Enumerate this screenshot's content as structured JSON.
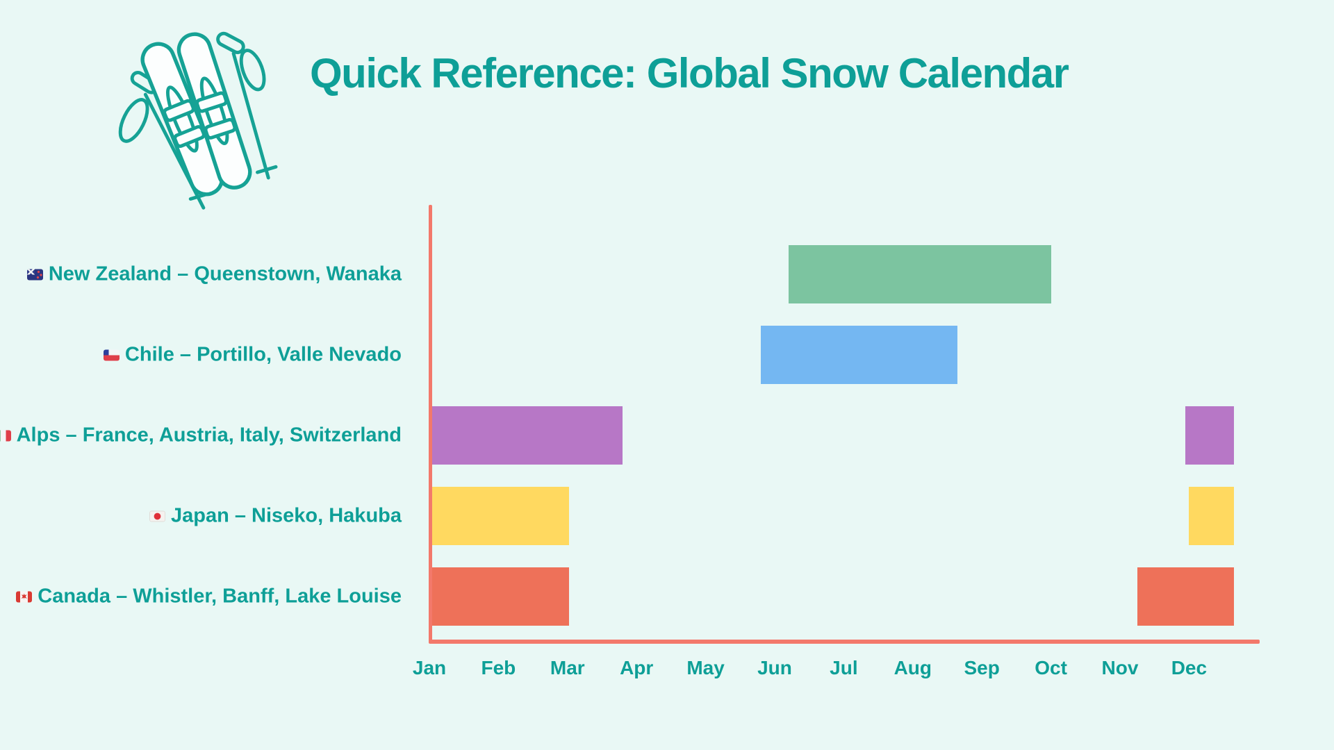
{
  "header": {
    "title": "Quick Reference: Global Snow Calendar"
  },
  "theme": {
    "background": "#e9f8f5",
    "teal_text": "#0e9f97",
    "axis_color": "#f3796b"
  },
  "chart_data": {
    "type": "bar",
    "variant": "gantt-season-calendar",
    "title": "Quick Reference: Global Snow Calendar",
    "orientation": "horizontal",
    "grid": "off",
    "legend": "none",
    "x_axis": {
      "tick_labels": [
        "Jan",
        "Feb",
        "Mar",
        "Apr",
        "May",
        "Jun",
        "Jul",
        "Aug",
        "Sep",
        "Oct",
        "Nov",
        "Dec"
      ],
      "scale_note": "calendar months; bar spans in fractional months where 1.0 = start of January and 13.0 = end of December"
    },
    "rows": [
      {
        "id": "new-zealand",
        "label": "New Zealand – Queenstown, Wanaka",
        "flags": [
          "nz"
        ],
        "color": "#7cc4a0",
        "bars_months": [
          [
            6.2,
            10.0
          ]
        ]
      },
      {
        "id": "chile",
        "label": "Chile – Portillo, Valle Nevado",
        "flags": [
          "cl"
        ],
        "color": "#74b7f2",
        "bars_months": [
          [
            5.8,
            8.65
          ]
        ]
      },
      {
        "id": "alps",
        "label": "Alps – France, Austria, Italy, Switzerland",
        "flags": [
          "fr",
          "at",
          "it"
        ],
        "color": "#b777c6",
        "bars_months": [
          [
            1.0,
            3.8
          ],
          [
            11.95,
            12.65
          ]
        ]
      },
      {
        "id": "japan",
        "label": "Japan – Niseko, Hakuba",
        "flags": [
          "jp"
        ],
        "color": "#ffd960",
        "bars_months": [
          [
            1.0,
            3.02
          ],
          [
            12.0,
            12.65
          ]
        ]
      },
      {
        "id": "canada",
        "label": "Canada – Whistler, Banff, Lake Louise",
        "flags": [
          "ca"
        ],
        "color": "#ee7159",
        "bars_months": [
          [
            1.0,
            3.02
          ],
          [
            11.25,
            12.65
          ]
        ]
      }
    ]
  }
}
